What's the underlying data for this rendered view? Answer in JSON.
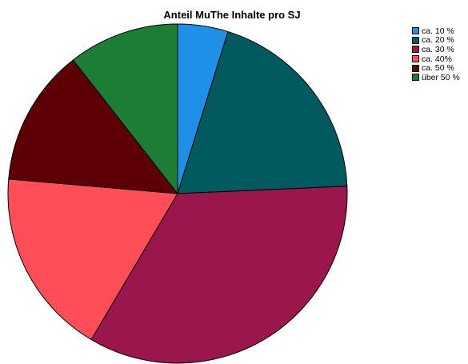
{
  "chart_data": {
    "type": "pie",
    "title": "Anteil MuThe Inhalte pro SJ",
    "categories": [
      "ca. 10 %",
      "ca. 20 %",
      "ca. 30 %",
      "ca. 40%",
      "ca. 50 %",
      "über 50 %"
    ],
    "values": [
      5.0,
      20.3,
      35.6,
      18.6,
      13.6,
      11.0
    ],
    "colors": [
      "#1e90e8",
      "#005a5e",
      "#9b164d",
      "#ff4e58",
      "#5c0005",
      "#1b7e34"
    ],
    "legend_position": "top-right",
    "start_angle": "top, clockwise"
  }
}
